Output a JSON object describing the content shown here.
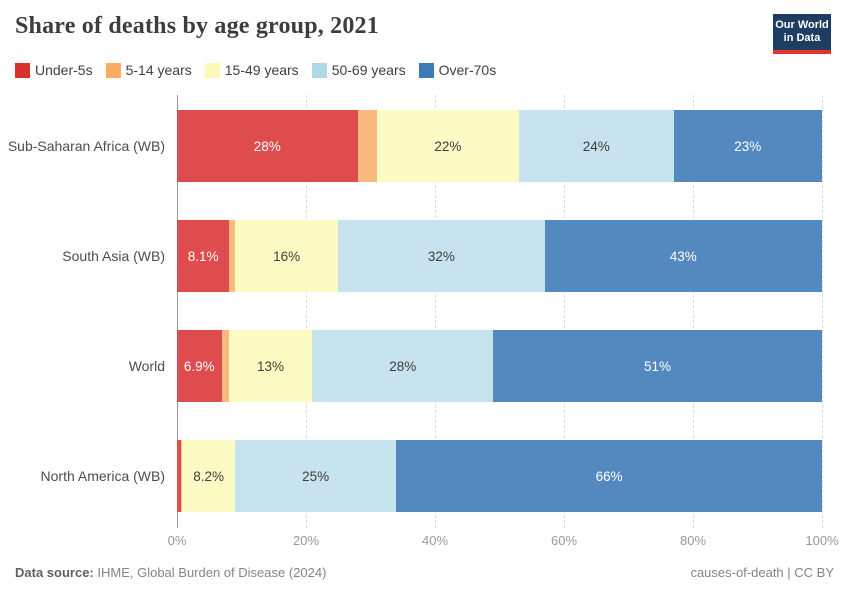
{
  "header": {
    "title": "Share of deaths by age group, 2021",
    "logo_line1": "Our World",
    "logo_line2": "in Data",
    "logo_bg": "#1d3d63",
    "logo_accent": "#e0342f"
  },
  "legend": {
    "items": [
      {
        "label": "Under-5s",
        "color": "#d7312c"
      },
      {
        "label": "5-14 years",
        "color": "#f9ad62"
      },
      {
        "label": "15-49 years",
        "color": "#fdfab8"
      },
      {
        "label": "50-69 years",
        "color": "#aedae8"
      },
      {
        "label": "Over-70s",
        "color": "#3a7bb8"
      }
    ]
  },
  "chart_data": {
    "type": "bar",
    "stacked": true,
    "orientation": "horizontal",
    "title": "Share of deaths by age group, 2021",
    "categories": [
      "Sub-Saharan Africa (WB)",
      "South Asia (WB)",
      "World",
      "North America (WB)"
    ],
    "series": [
      {
        "name": "Under-5s",
        "color": "#de4c4e",
        "label_color": "#ffffff",
        "values": [
          28,
          8.1,
          6.9,
          0.6
        ],
        "labels": [
          "28%",
          "8.1%",
          "6.9%",
          ""
        ]
      },
      {
        "name": "5-14 years",
        "color": "#fab97e",
        "label_color": "#3e3e3e",
        "values": [
          3,
          0.9,
          1.1,
          0.2
        ],
        "labels": [
          "",
          "",
          "",
          ""
        ]
      },
      {
        "name": "15-49 years",
        "color": "#fcfbc4",
        "label_color": "#3e3e3e",
        "values": [
          22,
          16,
          13,
          8.2
        ],
        "labels": [
          "22%",
          "16%",
          "13%",
          "8.2%"
        ]
      },
      {
        "name": "50-69 years",
        "color": "#c7e3ee",
        "label_color": "#3e3e3e",
        "values": [
          24,
          32,
          28,
          25
        ],
        "labels": [
          "24%",
          "32%",
          "28%",
          "25%"
        ]
      },
      {
        "name": "Over-70s",
        "color": "#5389bf",
        "label_color": "#ffffff",
        "values": [
          23,
          43,
          51,
          66
        ],
        "labels": [
          "23%",
          "43%",
          "51%",
          "66%"
        ]
      }
    ],
    "x_ticks": [
      "0%",
      "20%",
      "40%",
      "60%",
      "80%",
      "100%"
    ],
    "xlim": [
      0,
      100
    ],
    "grid": "vertical-dashed",
    "legend_position": "top"
  },
  "footer": {
    "source_label": "Data source:",
    "source_text": " IHME, Global Burden of Disease (2024)",
    "note_right": "causes-of-death | CC BY"
  }
}
